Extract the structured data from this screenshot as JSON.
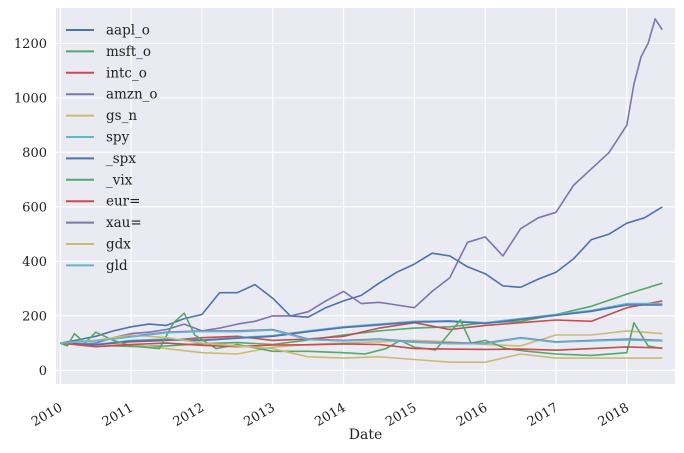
{
  "chart_data": {
    "type": "line",
    "title": "",
    "xlabel": "Date",
    "ylabel": "",
    "xlim": [
      2009.94,
      2018.68
    ],
    "ylim": [
      -50,
      1330
    ],
    "grid": true,
    "legend_position": "top-left",
    "x_ticks": [
      2010,
      2011,
      2012,
      2013,
      2014,
      2015,
      2016,
      2017,
      2018
    ],
    "x_tick_labels": [
      "2010",
      "2011",
      "2012",
      "2013",
      "2014",
      "2015",
      "2016",
      "2017",
      "2018"
    ],
    "y_ticks": [
      0,
      200,
      400,
      600,
      800,
      1000,
      1200
    ],
    "y_tick_labels": [
      "0",
      "200",
      "400",
      "600",
      "800",
      "1000",
      "1200"
    ],
    "series": [
      {
        "name": "aapl_o",
        "color": "#4c72b0",
        "x": [
          2010.0,
          2010.25,
          2010.5,
          2010.75,
          2011.0,
          2011.25,
          2011.5,
          2011.75,
          2012.0,
          2012.25,
          2012.5,
          2012.75,
          2013.0,
          2013.25,
          2013.5,
          2013.75,
          2014.0,
          2014.25,
          2014.5,
          2014.75,
          2015.0,
          2015.25,
          2015.5,
          2015.75,
          2016.0,
          2016.25,
          2016.5,
          2016.75,
          2017.0,
          2017.25,
          2017.5,
          2017.75,
          2018.0,
          2018.25,
          2018.5
        ],
        "values": [
          100,
          112,
          125,
          145,
          160,
          170,
          165,
          190,
          205,
          285,
          285,
          315,
          265,
          200,
          195,
          230,
          255,
          275,
          320,
          360,
          390,
          430,
          420,
          380,
          355,
          310,
          305,
          335,
          360,
          410,
          480,
          500,
          540,
          560,
          600
        ]
      },
      {
        "name": "msft_o",
        "color": "#55a868",
        "x": [
          2010.0,
          2010.5,
          2011.0,
          2011.5,
          2012.0,
          2012.5,
          2013.0,
          2013.5,
          2014.0,
          2014.5,
          2015.0,
          2015.5,
          2016.0,
          2016.5,
          2017.0,
          2017.5,
          2018.0,
          2018.5
        ],
        "values": [
          100,
          92,
          88,
          90,
          98,
          102,
          95,
          112,
          130,
          145,
          155,
          160,
          175,
          180,
          205,
          235,
          280,
          320
        ]
      },
      {
        "name": "intc_o",
        "color": "#c44e52",
        "x": [
          2010.0,
          2010.5,
          2011.0,
          2011.5,
          2012.0,
          2012.5,
          2013.0,
          2013.5,
          2014.0,
          2014.5,
          2015.0,
          2015.5,
          2016.0,
          2016.5,
          2017.0,
          2017.5,
          2018.0,
          2018.5
        ],
        "values": [
          100,
          95,
          105,
          110,
          120,
          125,
          110,
          115,
          125,
          155,
          175,
          150,
          165,
          175,
          185,
          180,
          230,
          255
        ]
      },
      {
        "name": "amzn_o",
        "color": "#8172b2",
        "x": [
          2010.0,
          2010.25,
          2010.5,
          2010.75,
          2011.0,
          2011.25,
          2011.5,
          2011.75,
          2012.0,
          2012.25,
          2012.5,
          2012.75,
          2013.0,
          2013.25,
          2013.5,
          2013.75,
          2014.0,
          2014.25,
          2014.5,
          2014.75,
          2015.0,
          2015.25,
          2015.5,
          2015.75,
          2016.0,
          2016.25,
          2016.5,
          2016.75,
          2017.0,
          2017.25,
          2017.5,
          2017.75,
          2018.0,
          2018.1,
          2018.2,
          2018.3,
          2018.4,
          2018.5
        ],
        "values": [
          100,
          95,
          100,
          120,
          135,
          140,
          150,
          170,
          145,
          155,
          170,
          180,
          200,
          200,
          215,
          255,
          290,
          245,
          250,
          240,
          230,
          290,
          340,
          470,
          490,
          420,
          520,
          560,
          580,
          680,
          740,
          800,
          900,
          1050,
          1150,
          1200,
          1290,
          1250
        ]
      },
      {
        "name": "gs_n",
        "color": "#ccb974",
        "x": [
          2010.0,
          2010.5,
          2011.0,
          2011.5,
          2012.0,
          2012.5,
          2013.0,
          2013.5,
          2014.0,
          2014.5,
          2015.0,
          2015.5,
          2016.0,
          2016.5,
          2017.0,
          2017.5,
          2018.0,
          2018.5
        ],
        "values": [
          100,
          90,
          95,
          80,
          65,
          60,
          85,
          95,
          100,
          105,
          110,
          105,
          95,
          90,
          130,
          130,
          145,
          135
        ]
      },
      {
        "name": "spy",
        "color": "#64b5cd",
        "x": [
          2010.0,
          2010.5,
          2011.0,
          2011.5,
          2012.0,
          2012.5,
          2013.0,
          2013.5,
          2014.0,
          2014.5,
          2015.0,
          2015.5,
          2016.0,
          2016.5,
          2017.0,
          2017.5,
          2018.0,
          2018.5
        ],
        "values": [
          100,
          95,
          110,
          115,
          112,
          120,
          128,
          145,
          160,
          170,
          180,
          182,
          175,
          190,
          205,
          220,
          245,
          245
        ]
      },
      {
        "name": "_spx",
        "color": "#4c72b0",
        "x": [
          2010.0,
          2010.5,
          2011.0,
          2011.5,
          2012.0,
          2012.5,
          2013.0,
          2013.5,
          2014.0,
          2014.5,
          2015.0,
          2015.5,
          2016.0,
          2016.5,
          2017.0,
          2017.5,
          2018.0,
          2018.5
        ],
        "values": [
          100,
          94,
          108,
          112,
          110,
          118,
          125,
          142,
          157,
          167,
          177,
          180,
          172,
          187,
          202,
          217,
          240,
          240
        ]
      },
      {
        "name": "_vix",
        "color": "#55a868",
        "x": [
          2010.0,
          2010.1,
          2010.2,
          2010.35,
          2010.5,
          2010.75,
          2011.0,
          2011.4,
          2011.6,
          2011.75,
          2011.9,
          2012.2,
          2012.5,
          2012.8,
          2013.0,
          2013.5,
          2014.0,
          2014.3,
          2014.6,
          2014.8,
          2015.0,
          2015.3,
          2015.65,
          2015.8,
          2016.0,
          2016.1,
          2016.3,
          2016.6,
          2017.0,
          2017.5,
          2018.0,
          2018.1,
          2018.3,
          2018.5
        ],
        "values": [
          100,
          90,
          135,
          100,
          140,
          110,
          90,
          80,
          175,
          210,
          130,
          80,
          95,
          80,
          70,
          70,
          65,
          60,
          80,
          110,
          85,
          75,
          185,
          100,
          110,
          100,
          80,
          70,
          60,
          55,
          65,
          175,
          90,
          80
        ]
      },
      {
        "name": "eur=",
        "color": "#c44e52",
        "x": [
          2010.0,
          2010.5,
          2011.0,
          2011.5,
          2012.0,
          2012.5,
          2013.0,
          2013.5,
          2014.0,
          2014.5,
          2015.0,
          2015.5,
          2016.0,
          2016.5,
          2017.0,
          2017.5,
          2018.0,
          2018.5
        ],
        "values": [
          100,
          87,
          95,
          100,
          92,
          87,
          93,
          94,
          97,
          95,
          80,
          78,
          77,
          78,
          74,
          80,
          86,
          82
        ]
      },
      {
        "name": "xau=",
        "color": "#8172b2",
        "x": [
          2010.0,
          2010.5,
          2011.0,
          2011.5,
          2012.0,
          2012.5,
          2013.0,
          2013.5,
          2014.0,
          2014.5,
          2015.0,
          2015.5,
          2016.0,
          2016.5,
          2017.0,
          2017.5,
          2018.0,
          2018.5
        ],
        "values": [
          100,
          110,
          125,
          140,
          145,
          145,
          150,
          115,
          110,
          115,
          105,
          100,
          100,
          120,
          105,
          110,
          115,
          110
        ]
      },
      {
        "name": "gdx",
        "color": "#ccb974",
        "x": [
          2010.0,
          2010.5,
          2011.0,
          2011.5,
          2012.0,
          2012.5,
          2013.0,
          2013.5,
          2014.0,
          2014.5,
          2015.0,
          2015.5,
          2016.0,
          2016.5,
          2017.0,
          2017.5,
          2018.0,
          2018.5
        ],
        "values": [
          100,
          110,
          130,
          120,
          100,
          90,
          80,
          50,
          45,
          50,
          40,
          30,
          30,
          60,
          45,
          45,
          45,
          45
        ]
      },
      {
        "name": "gld",
        "color": "#64b5cd",
        "x": [
          2010.0,
          2010.5,
          2011.0,
          2011.5,
          2012.0,
          2012.5,
          2013.0,
          2013.5,
          2014.0,
          2014.5,
          2015.0,
          2015.5,
          2016.0,
          2016.5,
          2017.0,
          2017.5,
          2018.0,
          2018.5
        ],
        "values": [
          100,
          108,
          123,
          138,
          143,
          142,
          148,
          113,
          108,
          113,
          103,
          98,
          98,
          118,
          103,
          108,
          112,
          108
        ]
      }
    ]
  }
}
